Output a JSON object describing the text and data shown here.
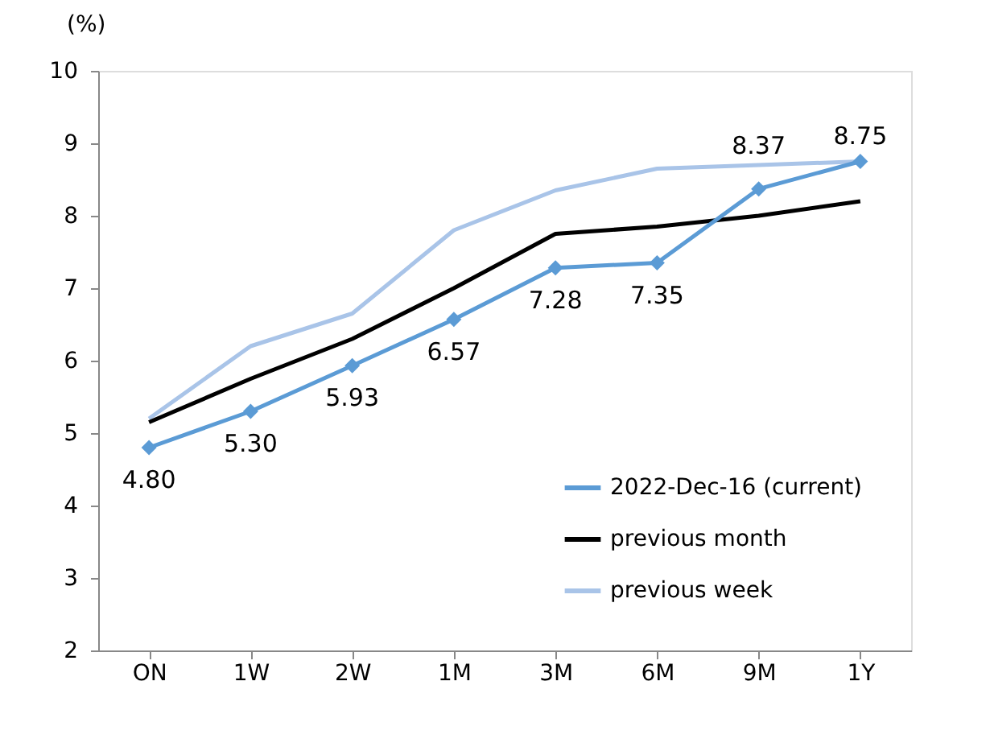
{
  "chart_data": {
    "type": "line",
    "ylabel": "(%)",
    "categories": [
      "ON",
      "1W",
      "2W",
      "1M",
      "3M",
      "6M",
      "9M",
      "1Y"
    ],
    "series": [
      {
        "name": "2022-Dec-16 (current)",
        "color": "#5b9bd5",
        "marker": "diamond",
        "values": [
          4.8,
          5.3,
          5.93,
          6.57,
          7.28,
          7.35,
          8.37,
          8.75
        ],
        "value_labels": [
          "4.80",
          "5.30",
          "5.93",
          "6.57",
          "7.28",
          "7.35",
          "8.37",
          "8.75"
        ]
      },
      {
        "name": "previous month",
        "color": "#000000",
        "marker": "none",
        "values": [
          5.15,
          5.75,
          6.3,
          7.0,
          7.75,
          7.85,
          8.0,
          8.2
        ]
      },
      {
        "name": "previous week",
        "color": "#a9c4e8",
        "marker": "none",
        "values": [
          5.2,
          6.2,
          6.65,
          7.8,
          8.35,
          8.65,
          8.7,
          8.75
        ]
      }
    ],
    "ylim": [
      2,
      10
    ],
    "yticks": [
      2,
      3,
      4,
      5,
      6,
      7,
      8,
      9,
      10
    ],
    "grid": false,
    "legend": "bottom right",
    "line_style": "solid"
  }
}
